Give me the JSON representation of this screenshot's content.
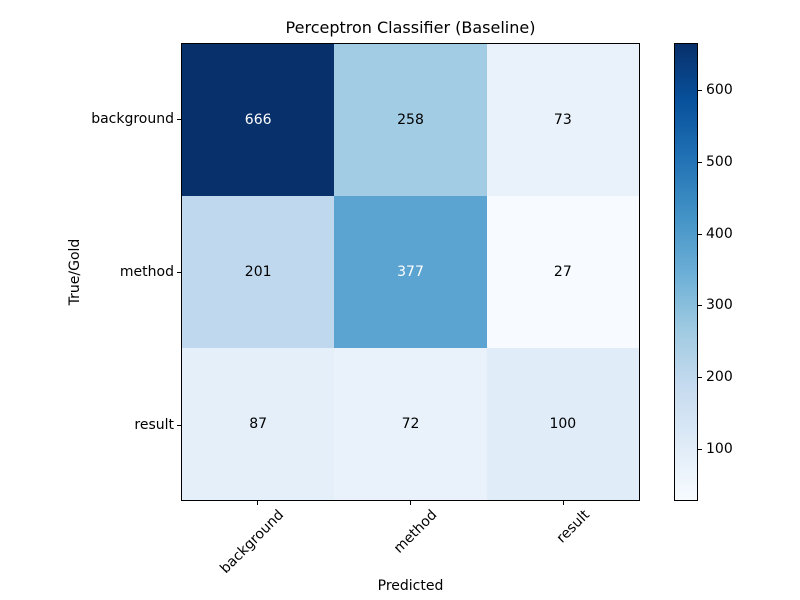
{
  "chart_data": {
    "type": "heatmap",
    "title": "Perceptron Classifier (Baseline)",
    "xlabel": "Predicted",
    "ylabel": "True/Gold",
    "x_categories": [
      "background",
      "method",
      "result"
    ],
    "y_categories": [
      "background",
      "method",
      "result"
    ],
    "values": [
      [
        666,
        258,
        73
      ],
      [
        201,
        377,
        27
      ],
      [
        87,
        72,
        100
      ]
    ],
    "vmin": 27,
    "vmax": 666,
    "colormap": "Blues",
    "grid": false,
    "legend": false,
    "colorbar_ticks": [
      "100",
      "200",
      "300",
      "400",
      "500",
      "600"
    ],
    "colorbar_gradient": [
      "#f7fbff",
      "#deebf7",
      "#c6dbef",
      "#9ecae1",
      "#6baed6",
      "#4292c6",
      "#2171b5",
      "#08519c",
      "#08306b"
    ],
    "cell_colors": [
      [
        "#08306b",
        "#a2cce3",
        "#e9f2fa"
      ],
      [
        "#bfd8ed",
        "#5ba3d0",
        "#f7fbff"
      ],
      [
        "#e4effa",
        "#e9f2fa",
        "#e0ecf8"
      ]
    ],
    "cell_text_colors": [
      [
        "#ffffff",
        "#000000",
        "#000000"
      ],
      [
        "#000000",
        "#ffffff",
        "#000000"
      ],
      [
        "#000000",
        "#000000",
        "#000000"
      ]
    ],
    "axis_color": "#000000",
    "background_color": "#ffffff"
  }
}
